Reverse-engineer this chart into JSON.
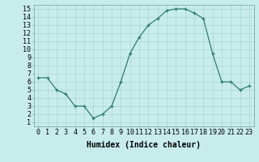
{
  "x": [
    0,
    1,
    2,
    3,
    4,
    5,
    6,
    7,
    8,
    9,
    10,
    11,
    12,
    13,
    14,
    15,
    16,
    17,
    18,
    19,
    20,
    21,
    22,
    23
  ],
  "y": [
    6.5,
    6.5,
    5.0,
    4.5,
    3.0,
    3.0,
    1.5,
    2.0,
    3.0,
    6.0,
    9.5,
    11.5,
    13.0,
    13.8,
    14.8,
    15.0,
    15.0,
    14.5,
    13.8,
    9.5,
    6.0,
    6.0,
    5.0,
    5.5
  ],
  "xlabel": "Humidex (Indice chaleur)",
  "xlim": [
    -0.5,
    23.5
  ],
  "ylim": [
    0.5,
    15.5
  ],
  "xticks": [
    0,
    1,
    2,
    3,
    4,
    5,
    6,
    7,
    8,
    9,
    10,
    11,
    12,
    13,
    14,
    15,
    16,
    17,
    18,
    19,
    20,
    21,
    22,
    23
  ],
  "yticks": [
    1,
    2,
    3,
    4,
    5,
    6,
    7,
    8,
    9,
    10,
    11,
    12,
    13,
    14,
    15
  ],
  "line_color": "#2e7d6e",
  "marker": "+",
  "bg_color": "#c8ecec",
  "grid_color": "#b0d8d8",
  "xlabel_fontsize": 7,
  "tick_fontsize": 6
}
